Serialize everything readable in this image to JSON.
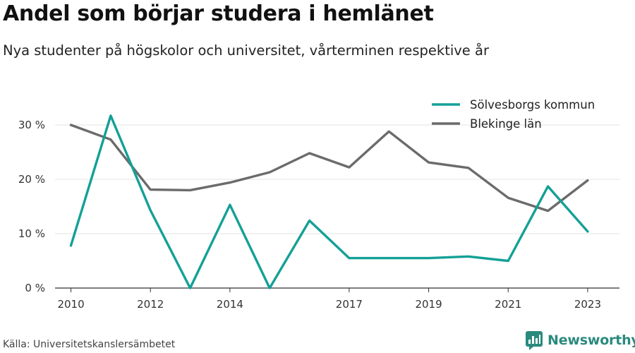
{
  "header": {
    "title": "Andel som börjar studera i hemlänet",
    "subtitle": "Nya studenter på högskolor och universitet, vårterminen respektive år"
  },
  "footer": {
    "source": "Källa: Universitetskanslersämbetet",
    "brand": "Newsworthy"
  },
  "icons": {
    "brand_logo": "bar-chart-logo-icon"
  },
  "colors": {
    "solvesborg": "#14a096",
    "blekinge": "#6b6b6b",
    "brand": "#2a8a7e",
    "grid": "#e3e3e3",
    "axis": "#333333"
  },
  "chart_data": {
    "type": "line",
    "title": "Andel som börjar studera i hemlänet",
    "subtitle": "Nya studenter på högskolor och universitet, vårterminen respektive år",
    "xlabel": "",
    "ylabel": "",
    "x": [
      2010,
      2011,
      2012,
      2013,
      2014,
      2015,
      2016,
      2017,
      2018,
      2019,
      2020,
      2021,
      2022,
      2023
    ],
    "x_ticks": [
      "2010",
      "2012",
      "2014",
      "2017",
      "2019",
      "2021",
      "2023"
    ],
    "y_ticks": [
      "0 %",
      "10 %",
      "20 %",
      "30 %"
    ],
    "y_tick_values": [
      0,
      10,
      20,
      30
    ],
    "xlim": [
      2009.6,
      2023.8
    ],
    "ylim": [
      0,
      33.5
    ],
    "grid": "horizontal",
    "legend": "top-right",
    "series": [
      {
        "name": "Sölvesborgs kommun",
        "color": "#14a096",
        "values": [
          7.8,
          31.7,
          14.3,
          0.0,
          15.3,
          0.0,
          12.4,
          5.5,
          5.5,
          5.5,
          5.8,
          5.0,
          18.7,
          10.4
        ]
      },
      {
        "name": "Blekinge län",
        "color": "#6b6b6b",
        "values": [
          30.0,
          27.3,
          18.1,
          18.0,
          19.4,
          21.3,
          24.8,
          22.2,
          28.8,
          23.1,
          22.1,
          16.6,
          14.2,
          19.8
        ]
      }
    ]
  }
}
